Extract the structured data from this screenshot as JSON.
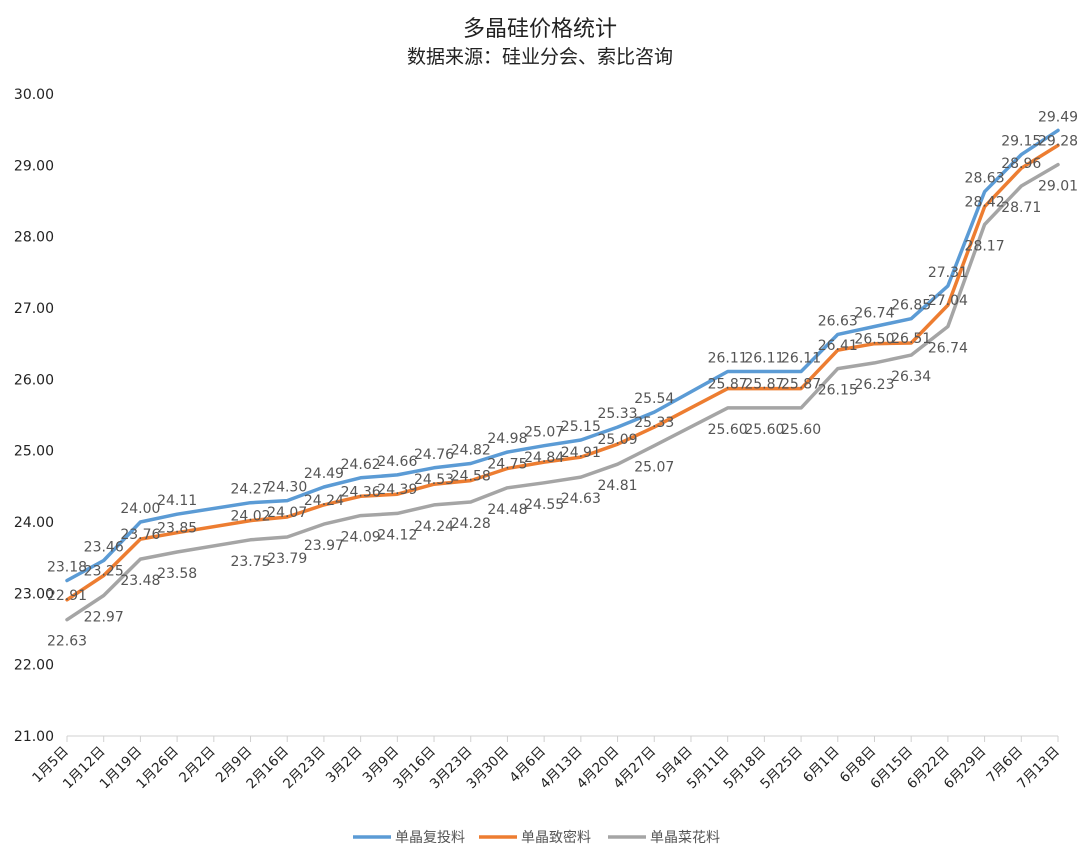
{
  "chart_data": {
    "type": "line",
    "title": "多晶硅价格统计",
    "subtitle": "数据来源：硅业分会、索比咨询",
    "ylim": [
      21,
      30
    ],
    "yticks": [
      "21.00",
      "22.00",
      "23.00",
      "24.00",
      "25.00",
      "26.00",
      "27.00",
      "28.00",
      "29.00",
      "30.00"
    ],
    "categories": [
      "1月5日",
      "1月12日",
      "1月19日",
      "1月26日",
      "2月2日",
      "2月9日",
      "2月16日",
      "2月23日",
      "3月2日",
      "3月9日",
      "3月16日",
      "3月23日",
      "3月30日",
      "4月6日",
      "4月13日",
      "4月20日",
      "4月27日",
      "5月4日",
      "5月11日",
      "5月18日",
      "5月25日",
      "6月1日",
      "6月8日",
      "6月15日",
      "6月22日",
      "6月29日",
      "7月6日",
      "7月13日"
    ],
    "series": [
      {
        "name": "单晶复投料",
        "color": "#5b9bd5",
        "values": [
          23.18,
          23.46,
          24.0,
          24.11,
          null,
          24.27,
          24.3,
          24.49,
          24.62,
          24.66,
          24.76,
          24.82,
          24.98,
          25.07,
          25.15,
          25.33,
          25.54,
          null,
          26.11,
          26.11,
          26.11,
          26.63,
          26.74,
          26.85,
          27.31,
          28.63,
          29.15,
          29.49
        ],
        "labels": [
          "23.18",
          "23.46",
          "24.00",
          "24.11",
          "",
          "24.27",
          "24.30",
          "24.49",
          "24.62",
          "24.66",
          "24.76",
          "24.82",
          "24.98",
          "25.07",
          "25.15",
          "25.33",
          "25.54",
          "",
          "26.11",
          "26.11",
          "26.11",
          "26.63",
          "26.74",
          "26.85",
          "27.31",
          "28.63",
          "29.15",
          "29.49"
        ]
      },
      {
        "name": "单晶致密料",
        "color": "#ed7d31",
        "values": [
          22.91,
          23.25,
          23.76,
          23.85,
          null,
          24.02,
          24.07,
          24.24,
          24.36,
          24.39,
          24.53,
          24.58,
          24.75,
          24.84,
          24.91,
          25.09,
          25.33,
          null,
          25.87,
          25.87,
          25.87,
          26.41,
          26.5,
          26.51,
          27.04,
          28.42,
          28.96,
          29.28
        ],
        "labels": [
          "22.91",
          "23.25",
          "23.76",
          "23.85",
          "",
          "24.02",
          "24.07",
          "24.24",
          "24.36",
          "24.39",
          "24.53",
          "24.58",
          "24.75",
          "24.84",
          "24.91",
          "25.09",
          "25.33",
          "",
          "25.87",
          "25.87",
          "25.87",
          "26.41",
          "26.50",
          "26.51",
          "27.04",
          "28.42",
          "28.96",
          "29.28"
        ]
      },
      {
        "name": "单晶菜花料",
        "color": "#a5a5a5",
        "values": [
          22.63,
          22.97,
          23.48,
          23.58,
          null,
          23.75,
          23.79,
          23.97,
          24.09,
          24.12,
          24.24,
          24.28,
          24.48,
          24.55,
          24.63,
          24.81,
          25.07,
          null,
          25.6,
          25.6,
          25.6,
          26.15,
          26.23,
          26.34,
          26.74,
          28.17,
          28.71,
          29.01
        ],
        "labels": [
          "22.63",
          "22.97",
          "23.48",
          "23.58",
          "",
          "23.75",
          "23.79",
          "23.97",
          "24.09",
          "24.12",
          "24.24",
          "24.28",
          "24.48",
          "24.55",
          "24.63",
          "24.81",
          "25.07",
          "",
          "25.60",
          "25.60",
          "25.60",
          "26.15",
          "26.23",
          "26.34",
          "26.74",
          "28.17",
          "28.71",
          "29.01"
        ]
      }
    ],
    "legend_position": "bottom",
    "grid": false
  }
}
